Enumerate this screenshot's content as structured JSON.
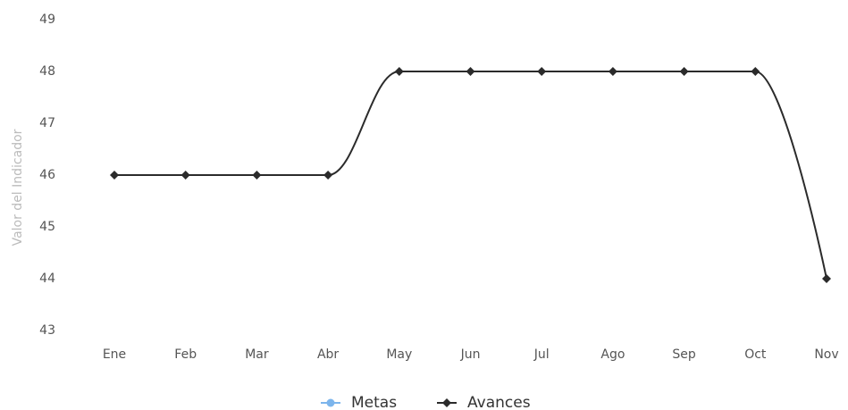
{
  "chart_data": {
    "type": "line",
    "y_label": "Valor del Indicador",
    "categories": [
      "Ene",
      "Feb",
      "Mar",
      "Abr",
      "May",
      "Jun",
      "Jul",
      "Ago",
      "Sep",
      "Oct",
      "Nov"
    ],
    "series": [
      {
        "name": "Metas",
        "color": "#7cb5ec",
        "values": [
          null,
          null,
          null,
          null,
          null,
          null,
          null,
          null,
          null,
          null,
          null
        ]
      },
      {
        "name": "Avances",
        "color": "#2b2b2b",
        "values": [
          46,
          46,
          46,
          46,
          48,
          48,
          48,
          48,
          48,
          48,
          44
        ]
      }
    ],
    "ylim": [
      43,
      49
    ],
    "yticks": [
      43,
      44,
      45,
      46,
      47,
      48,
      49
    ],
    "grid": false
  }
}
